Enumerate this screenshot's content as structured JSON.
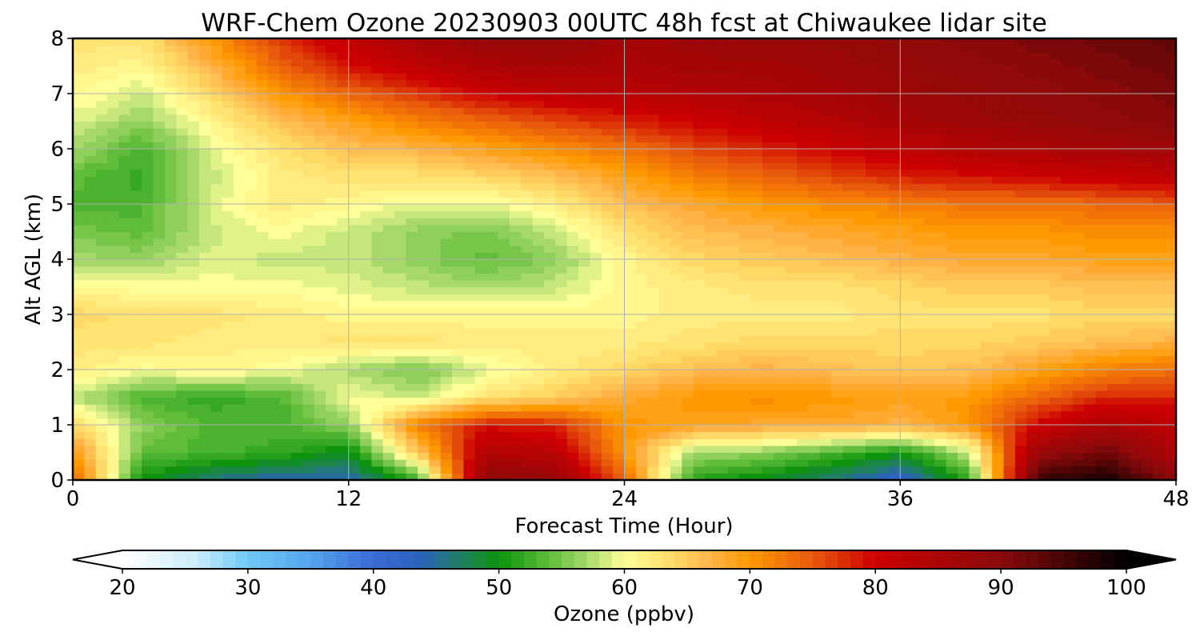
{
  "chart_data": {
    "type": "heatmap",
    "title": "WRF-Chem Ozone  20230903 00UTC 48h fcst at Chiwaukee lidar site",
    "xlabel": "Forecast Time (Hour)",
    "ylabel": "Alt AGL (km)",
    "xlim": [
      0,
      48
    ],
    "ylim": [
      0,
      8
    ],
    "xticks": [
      0,
      12,
      24,
      36,
      48
    ],
    "yticks": [
      0,
      1,
      2,
      3,
      4,
      5,
      6,
      7,
      8
    ],
    "grid": true,
    "x": [
      0,
      3,
      6,
      9,
      12,
      15,
      18,
      21,
      24,
      27,
      30,
      33,
      36,
      39,
      42,
      45,
      48
    ],
    "y": [
      0,
      0.5,
      1,
      1.5,
      2,
      2.5,
      3,
      3.5,
      4,
      4.5,
      5,
      5.5,
      6,
      6.5,
      7,
      7.5,
      8
    ],
    "z": [
      [
        75,
        50,
        46,
        44,
        44,
        52,
        90,
        88,
        74,
        51,
        49,
        46,
        42,
        52,
        96,
        98,
        90
      ],
      [
        70,
        54,
        53,
        52,
        49,
        65,
        84,
        83,
        70,
        57,
        56,
        53,
        50,
        58,
        88,
        92,
        84
      ],
      [
        64,
        56,
        53,
        53,
        56,
        72,
        79,
        78,
        70,
        69,
        68,
        68,
        67,
        70,
        80,
        85,
        82
      ],
      [
        58,
        53,
        52,
        53,
        60,
        58,
        63,
        65,
        68,
        70,
        71,
        70,
        69,
        70,
        74,
        78,
        78
      ],
      [
        62,
        60,
        61,
        60,
        57,
        55,
        59,
        62,
        64,
        66,
        67,
        66,
        65,
        66,
        69,
        72,
        73
      ],
      [
        63,
        63,
        62,
        62,
        63,
        63,
        62,
        62,
        62,
        63,
        64,
        64,
        64,
        64,
        65,
        66,
        67
      ],
      [
        64,
        63,
        63,
        62,
        61,
        61,
        61,
        61,
        61,
        62,
        62,
        62,
        63,
        63,
        63,
        64,
        64
      ],
      [
        61,
        60,
        60,
        60,
        59,
        58,
        57,
        58,
        61,
        62,
        63,
        63,
        64,
        65,
        65,
        66,
        66
      ],
      [
        57,
        56,
        59,
        58,
        58,
        56,
        54,
        56,
        61,
        64,
        65,
        66,
        67,
        68,
        68,
        69,
        69
      ],
      [
        55,
        54,
        58,
        60,
        58,
        56,
        55,
        58,
        63,
        66,
        67,
        68,
        69,
        70,
        70,
        71,
        71
      ],
      [
        53,
        53,
        59,
        62,
        61,
        59,
        59,
        62,
        66,
        68,
        70,
        71,
        72,
        73,
        73,
        74,
        75
      ],
      [
        54,
        52,
        58,
        62,
        63,
        63,
        64,
        66,
        69,
        72,
        74,
        76,
        78,
        79,
        80,
        81,
        82
      ],
      [
        57,
        53,
        59,
        63,
        66,
        67,
        69,
        71,
        73,
        76,
        78,
        80,
        82,
        84,
        85,
        86,
        87
      ],
      [
        59,
        56,
        61,
        66,
        69,
        72,
        74,
        76,
        78,
        80,
        82,
        84,
        86,
        87,
        88,
        89,
        90
      ],
      [
        61,
        58,
        64,
        70,
        74,
        77,
        80,
        82,
        83,
        84,
        85,
        86,
        87,
        88,
        89,
        90,
        91
      ],
      [
        62,
        61,
        67,
        74,
        79,
        82,
        85,
        86,
        85,
        86,
        86,
        87,
        88,
        89,
        90,
        91,
        92
      ],
      [
        63,
        63,
        70,
        77,
        82,
        86,
        88,
        88,
        86,
        87,
        88,
        88,
        89,
        90,
        91,
        92,
        93
      ]
    ],
    "colorbar": {
      "label": "Ozone  (ppbv)",
      "min": 20,
      "max": 100,
      "step": 1,
      "ticks": [
        20,
        30,
        40,
        50,
        60,
        70,
        80,
        90,
        100
      ],
      "extend": "both"
    }
  }
}
